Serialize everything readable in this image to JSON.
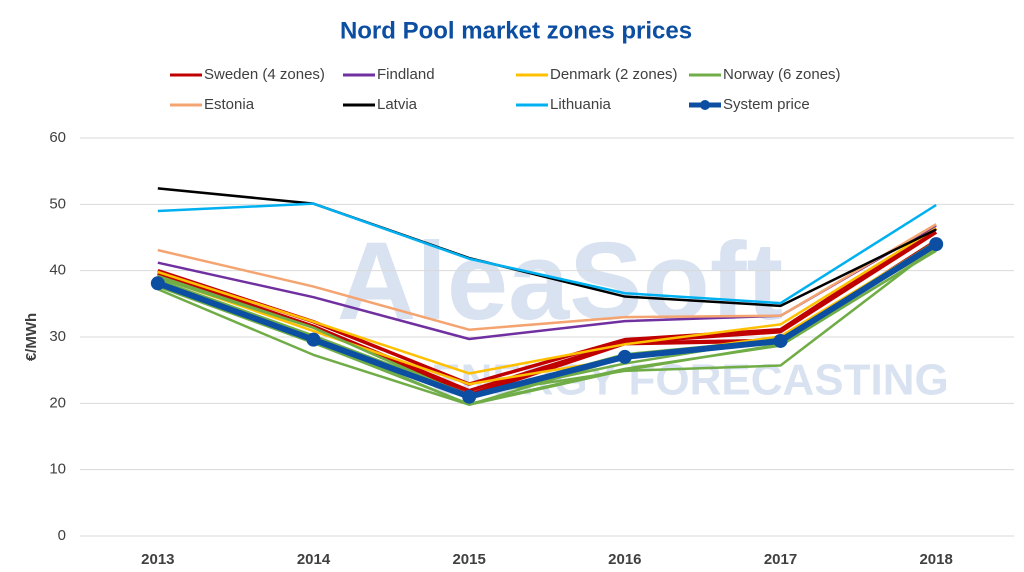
{
  "chart_data": {
    "type": "line",
    "title": "Nord Pool market zones prices",
    "watermark": [
      "AleaSoft",
      "ENERGY FORECASTING"
    ],
    "y_label": "€/MWh",
    "categories": [
      "2013",
      "2014",
      "2015",
      "2016",
      "2017",
      "2018"
    ],
    "ylim": [
      0,
      60
    ],
    "yticks": [
      0,
      10,
      20,
      30,
      40,
      50,
      60
    ],
    "grid": true,
    "series": [
      {
        "name": "Sweden (4 zones)",
        "color": "#c00000",
        "values": [
          [
            39.6,
            31.5,
            21.2,
            29.0,
            29.4,
            44.4
          ],
          [
            39.6,
            31.6,
            21.3,
            29.1,
            29.5,
            44.5
          ],
          [
            39.4,
            31.6,
            21.9,
            29.2,
            30.8,
            45.8
          ],
          [
            40.0,
            32.3,
            22.9,
            29.6,
            31.1,
            46.4
          ]
        ]
      },
      {
        "name": "Findland",
        "color": "#7030a0",
        "values": [
          [
            41.2,
            36.0,
            29.7,
            32.4,
            33.2,
            46.8
          ]
        ]
      },
      {
        "name": "Denmark (2 zones)",
        "color": "#ffc000",
        "values": [
          [
            39.0,
            30.9,
            22.9,
            26.8,
            30.1,
            44.3
          ],
          [
            39.8,
            32.3,
            24.5,
            28.9,
            31.9,
            46.4
          ]
        ]
      },
      {
        "name": "Norway (6 zones)",
        "color": "#70ad47",
        "values": [
          [
            38.2,
            29.6,
            19.8,
            26.9,
            29.3,
            44.2
          ],
          [
            37.6,
            29.1,
            19.9,
            25.2,
            28.7,
            43.1
          ],
          [
            39.2,
            31.4,
            21.0,
            26.0,
            29.8,
            43.4
          ],
          [
            38.6,
            30.2,
            21.3,
            24.9,
            25.7,
            43.6
          ],
          [
            37.2,
            27.3,
            19.8,
            25.0,
            28.9,
            43.0
          ],
          [
            38.9,
            31.4,
            21.0,
            27.4,
            29.6,
            44.4
          ]
        ]
      },
      {
        "name": "Estonia",
        "color": "#f4a470",
        "values": [
          [
            43.1,
            37.6,
            31.1,
            33.0,
            33.2,
            47.0
          ]
        ]
      },
      {
        "name": "Latvia",
        "color": "#000000",
        "values": [
          [
            52.4,
            50.1,
            41.9,
            36.1,
            34.7,
            46.2
          ]
        ]
      },
      {
        "name": "Lithuania",
        "color": "#00b0f0",
        "values": [
          [
            49.0,
            50.1,
            41.8,
            36.6,
            35.1,
            49.9
          ]
        ]
      },
      {
        "name": "System price",
        "color": "#0b4ea2",
        "markers": true,
        "values": [
          [
            38.1,
            29.6,
            21.0,
            27.0,
            29.4,
            44.0
          ]
        ]
      }
    ]
  }
}
